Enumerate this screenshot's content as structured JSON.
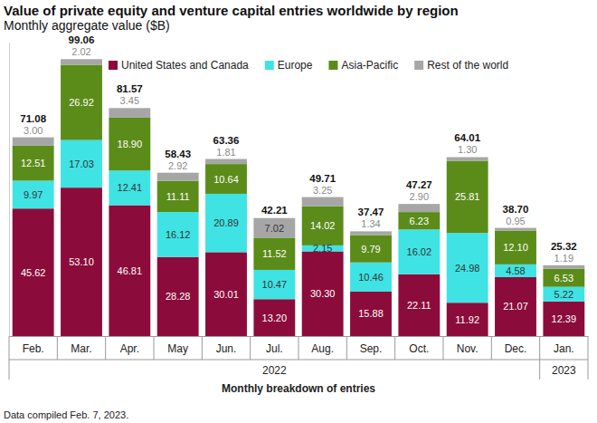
{
  "chart_data": {
    "type": "bar",
    "title": "Value of private equity and venture capital entries worldwide by region",
    "subtitle": "Monthly aggregate value ($B)",
    "xlabel": "Monthly breakdown of entries",
    "note": "Data compiled Feb. 7, 2023.",
    "categories": [
      "Feb.",
      "Mar.",
      "Apr.",
      "May",
      "Jun.",
      "Jul.",
      "Aug.",
      "Sep.",
      "Oct.",
      "Nov.",
      "Dec.",
      "Jan."
    ],
    "x_groups": [
      {
        "label": "2022",
        "first": "Feb.",
        "last": "Dec."
      },
      {
        "label": "2023",
        "first": "Jan.",
        "last": "Jan."
      }
    ],
    "stacked": true,
    "data_labels": true,
    "tick_labels": "x",
    "legend": "top",
    "ylim": [
      0,
      105
    ],
    "series": [
      {
        "name": "United States and Canada",
        "color": "#8b0c3b",
        "values": [
          45.62,
          53.1,
          46.81,
          28.28,
          30.01,
          13.2,
          30.3,
          15.88,
          22.11,
          11.92,
          21.07,
          12.39
        ],
        "value_labels": [
          "45.62",
          "53.10",
          "46.81",
          "28.28",
          "30.01",
          "13.20",
          "30.30",
          "15.88",
          "22.11",
          "11.92",
          "21.07",
          "12.39"
        ]
      },
      {
        "name": "Europe",
        "color": "#3fe3e3",
        "values": [
          9.97,
          17.03,
          12.41,
          16.12,
          20.89,
          10.47,
          2.15,
          10.46,
          16.02,
          24.98,
          4.58,
          5.22
        ],
        "value_labels": [
          "9.97",
          "17.03",
          "12.41",
          "16.12",
          "20.89",
          "10.47",
          "2.15",
          "10.46",
          "16.02",
          "24.98",
          "4.58",
          "5.22"
        ]
      },
      {
        "name": "Asia-Pacific",
        "color": "#5b8c1a",
        "values": [
          12.51,
          26.92,
          18.9,
          11.11,
          10.64,
          11.52,
          14.02,
          9.79,
          6.23,
          25.81,
          12.1,
          6.53
        ],
        "value_labels": [
          "12.51",
          "26.92",
          "18.90",
          "11.11",
          "10.64",
          "11.52",
          "14.02",
          "9.79",
          "6.23",
          "25.81",
          "12.10",
          "6.53"
        ]
      },
      {
        "name": "Rest of the world",
        "color": "#a6a6a6",
        "values": [
          3.0,
          2.02,
          3.45,
          2.92,
          1.81,
          7.02,
          3.25,
          1.34,
          2.9,
          1.3,
          0.95,
          1.19
        ],
        "value_labels": [
          "3.00",
          "2.02",
          "3.45",
          "2.92",
          "1.81",
          "7.02",
          "3.25",
          "1.34",
          "2.90",
          "1.30",
          "0.95",
          "1.19"
        ]
      }
    ],
    "totals": {
      "values": [
        71.08,
        99.06,
        81.57,
        58.43,
        63.36,
        42.21,
        49.71,
        37.47,
        47.27,
        64.01,
        38.7,
        25.32
      ],
      "value_labels": [
        "71.08",
        "99.06",
        "81.57",
        "58.43",
        "63.36",
        "42.21",
        "49.71",
        "37.47",
        "47.27",
        "64.01",
        "38.70",
        "25.32"
      ]
    }
  }
}
